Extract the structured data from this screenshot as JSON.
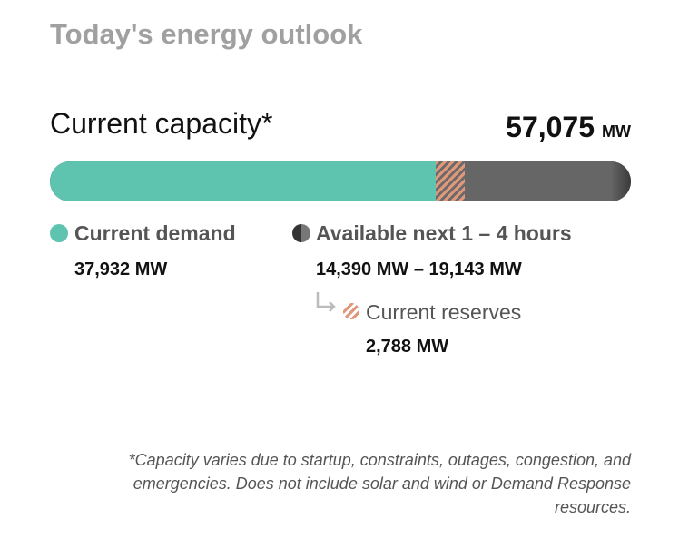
{
  "title": "Today's energy outlook",
  "capacity": {
    "label": "Current capacity*",
    "value": 57075,
    "value_label": "57,075",
    "unit": "MW"
  },
  "demand": {
    "label": "Current demand",
    "value": 37932,
    "value_label": "37,932 MW"
  },
  "available": {
    "label": "Available next 1 – 4 hours",
    "low": 14390,
    "high": 19143,
    "value_label": "14,390 MW – 19,143 MW"
  },
  "reserves": {
    "label": "Current reserves",
    "value": 2788,
    "value_label": "2,788 MW"
  },
  "footnote": "*Capacity varies due to startup, constraints, outages, congestion, and emergencies. Does not include solar and wind or Demand Response resources."
}
